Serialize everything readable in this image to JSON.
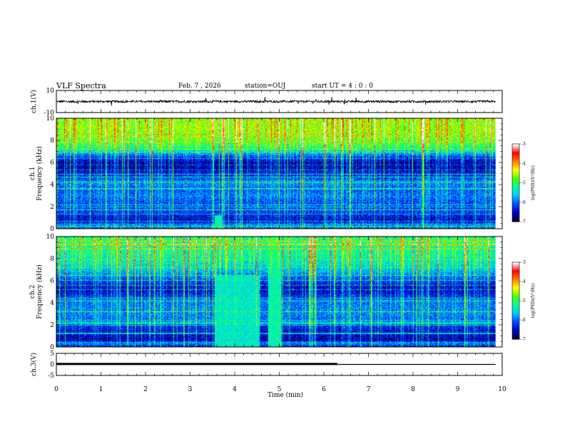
{
  "header": {
    "title": "VLF Spectra",
    "date": "Feb. 7 , 2026",
    "station": "station=OUJ",
    "start_ut": "start  UT =  4 : 0  : 0"
  },
  "chart_data": [
    {
      "type": "line",
      "name": "ch1-waveform",
      "ylabel": "ch.1(V)",
      "ylim": [
        -10,
        10
      ],
      "yticks": [
        "10",
        "-10"
      ],
      "xlim": [
        0,
        10
      ],
      "baseline": 0,
      "noise_amplitude": 1,
      "spike_amplitude": 3.5
    },
    {
      "type": "heatmap",
      "name": "ch1-spectrogram",
      "ylabel_lines": [
        "ch.1",
        "Frequency  (kHz)"
      ],
      "ylim": [
        0,
        10
      ],
      "yticks": [
        "0",
        "2",
        "4",
        "6",
        "8",
        "10"
      ],
      "xlim": [
        0,
        9.85
      ],
      "intensity_profile": {
        "freq_khz": [
          0,
          0.3,
          0.6,
          1,
          1.5,
          2,
          2.5,
          3,
          3.5,
          4,
          4.5,
          5,
          5.5,
          6,
          6.5,
          7,
          7.5,
          8,
          8.5,
          9,
          9.5,
          10
        ],
        "log_psd": [
          -6.2,
          -5.8,
          -6.6,
          -6.5,
          -6.3,
          -6.2,
          -6.2,
          -6.0,
          -6.2,
          -6.0,
          -6.2,
          -6.5,
          -6.7,
          -6.7,
          -6.3,
          -5.6,
          -5.1,
          -4.9,
          -4.8,
          -4.7,
          -4.7,
          -4.7
        ]
      },
      "bursts": [
        {
          "t_start": 3.55,
          "t_end": 3.7,
          "f_max_khz": 1.2,
          "log_psd": -5.3
        }
      ]
    },
    {
      "type": "heatmap",
      "name": "ch2-spectrogram",
      "ylabel_lines": [
        "ch.2",
        "Frequency  (kHz)"
      ],
      "ylim": [
        0,
        10
      ],
      "yticks": [
        "0",
        "2",
        "4",
        "6",
        "8",
        "10"
      ],
      "xlim": [
        0,
        9.85
      ],
      "intensity_profile": {
        "freq_khz": [
          0,
          0.3,
          0.6,
          1,
          1.5,
          2,
          2.5,
          3,
          3.5,
          4,
          4.5,
          5,
          5.5,
          6,
          6.5,
          7,
          7.5,
          8,
          8.5,
          9,
          9.5,
          10
        ],
        "log_psd": [
          -6.4,
          -6.0,
          -6.7,
          -6.6,
          -6.5,
          -6.3,
          -6.1,
          -6.0,
          -6.0,
          -6.1,
          -6.3,
          -6.6,
          -6.6,
          -6.3,
          -6.0,
          -5.7,
          -5.5,
          -5.4,
          -5.3,
          -5.3,
          -5.2,
          -5.2
        ]
      },
      "bursts": [
        {
          "t_start": 3.55,
          "t_end": 4.55,
          "f_max_khz": 6.5,
          "log_psd": -5.4
        },
        {
          "t_start": 4.75,
          "t_end": 5.05,
          "f_max_khz": 10,
          "log_psd": -5.3
        }
      ]
    },
    {
      "type": "line",
      "name": "ch3-level",
      "ylabel": "ch.3(V)",
      "ylim": [
        -5,
        5
      ],
      "yticks": [
        "5",
        "0",
        "-5"
      ],
      "xlim": [
        0,
        10
      ],
      "x": [
        0,
        6.3,
        6.3,
        9.85
      ],
      "y": [
        0.2,
        0.2,
        0,
        0
      ],
      "thick_until": 6.3
    }
  ],
  "colorbar": {
    "min": -7,
    "max": -3,
    "ticks": [
      "-3",
      "-4",
      "-5",
      "-6",
      "-7"
    ],
    "label": "log(PSD)(V²/Hz)",
    "colors": [
      "#000033",
      "#0000c8",
      "#0050ff",
      "#00c8ff",
      "#00ffa0",
      "#50ff00",
      "#ffff00",
      "#ff8000",
      "#ff0000",
      "#ffffff"
    ]
  },
  "x_axis": {
    "label": "Time  (min)",
    "ticks": [
      "0",
      "1",
      "2",
      "3",
      "4",
      "5",
      "6",
      "7",
      "8",
      "9",
      "10"
    ]
  }
}
